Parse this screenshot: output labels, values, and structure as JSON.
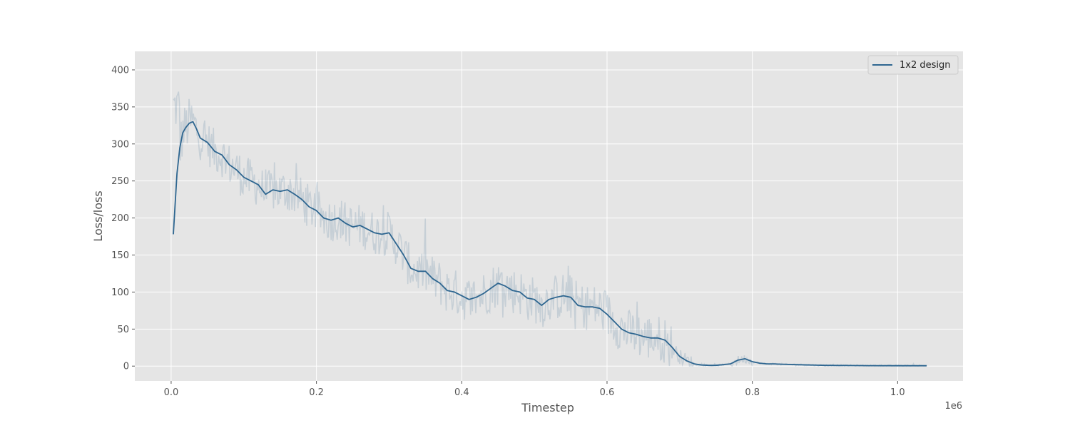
{
  "chart_data": {
    "type": "line",
    "xlabel": "Timestep",
    "ylabel": "Loss/loss",
    "x_offset_label": "1e6",
    "xlim": [
      -0.05,
      1.09
    ],
    "ylim": [
      -20,
      425
    ],
    "x_ticks": [
      0.0,
      0.2,
      0.4,
      0.6,
      0.8,
      1.0
    ],
    "x_tick_labels": [
      "0.0",
      "0.2",
      "0.4",
      "0.6",
      "0.8",
      "1.0"
    ],
    "y_ticks": [
      0,
      50,
      100,
      150,
      200,
      250,
      300,
      350,
      400
    ],
    "y_tick_labels": [
      "0",
      "50",
      "100",
      "150",
      "200",
      "250",
      "300",
      "350",
      "400"
    ],
    "grid": true,
    "legend_position": "top-right",
    "series": [
      {
        "name": "1x2 design",
        "color": "#2e6690",
        "x": [
          0.003,
          0.008,
          0.012,
          0.016,
          0.02,
          0.025,
          0.03,
          0.035,
          0.04,
          0.05,
          0.06,
          0.07,
          0.08,
          0.09,
          0.1,
          0.11,
          0.12,
          0.13,
          0.14,
          0.15,
          0.16,
          0.17,
          0.18,
          0.19,
          0.2,
          0.21,
          0.22,
          0.23,
          0.24,
          0.25,
          0.26,
          0.27,
          0.28,
          0.29,
          0.3,
          0.31,
          0.32,
          0.33,
          0.34,
          0.35,
          0.36,
          0.37,
          0.38,
          0.39,
          0.4,
          0.41,
          0.42,
          0.43,
          0.44,
          0.45,
          0.46,
          0.47,
          0.48,
          0.49,
          0.5,
          0.51,
          0.52,
          0.53,
          0.54,
          0.55,
          0.56,
          0.57,
          0.58,
          0.59,
          0.6,
          0.61,
          0.62,
          0.63,
          0.64,
          0.65,
          0.66,
          0.67,
          0.68,
          0.69,
          0.7,
          0.71,
          0.72,
          0.73,
          0.74,
          0.75,
          0.76,
          0.77,
          0.78,
          0.79,
          0.8,
          0.81,
          0.82,
          0.83,
          0.84,
          0.86,
          0.88,
          0.9,
          0.93,
          0.96,
          1.0,
          1.04
        ],
        "y": [
          178,
          260,
          295,
          315,
          322,
          328,
          330,
          320,
          308,
          302,
          290,
          285,
          272,
          265,
          255,
          250,
          245,
          232,
          238,
          236,
          238,
          232,
          225,
          215,
          210,
          200,
          197,
          200,
          193,
          188,
          190,
          185,
          180,
          178,
          180,
          165,
          150,
          132,
          128,
          128,
          118,
          112,
          102,
          100,
          95,
          90,
          93,
          98,
          105,
          112,
          108,
          102,
          100,
          92,
          90,
          82,
          90,
          93,
          95,
          93,
          82,
          80,
          80,
          78,
          70,
          60,
          50,
          45,
          43,
          40,
          38,
          38,
          35,
          25,
          13,
          7,
          3,
          1.5,
          1,
          1,
          2,
          3,
          8,
          10,
          6,
          4,
          3,
          3,
          2.5,
          2,
          1.5,
          1,
          0.8,
          0.6,
          0.5,
          0.5
        ]
      }
    ]
  }
}
